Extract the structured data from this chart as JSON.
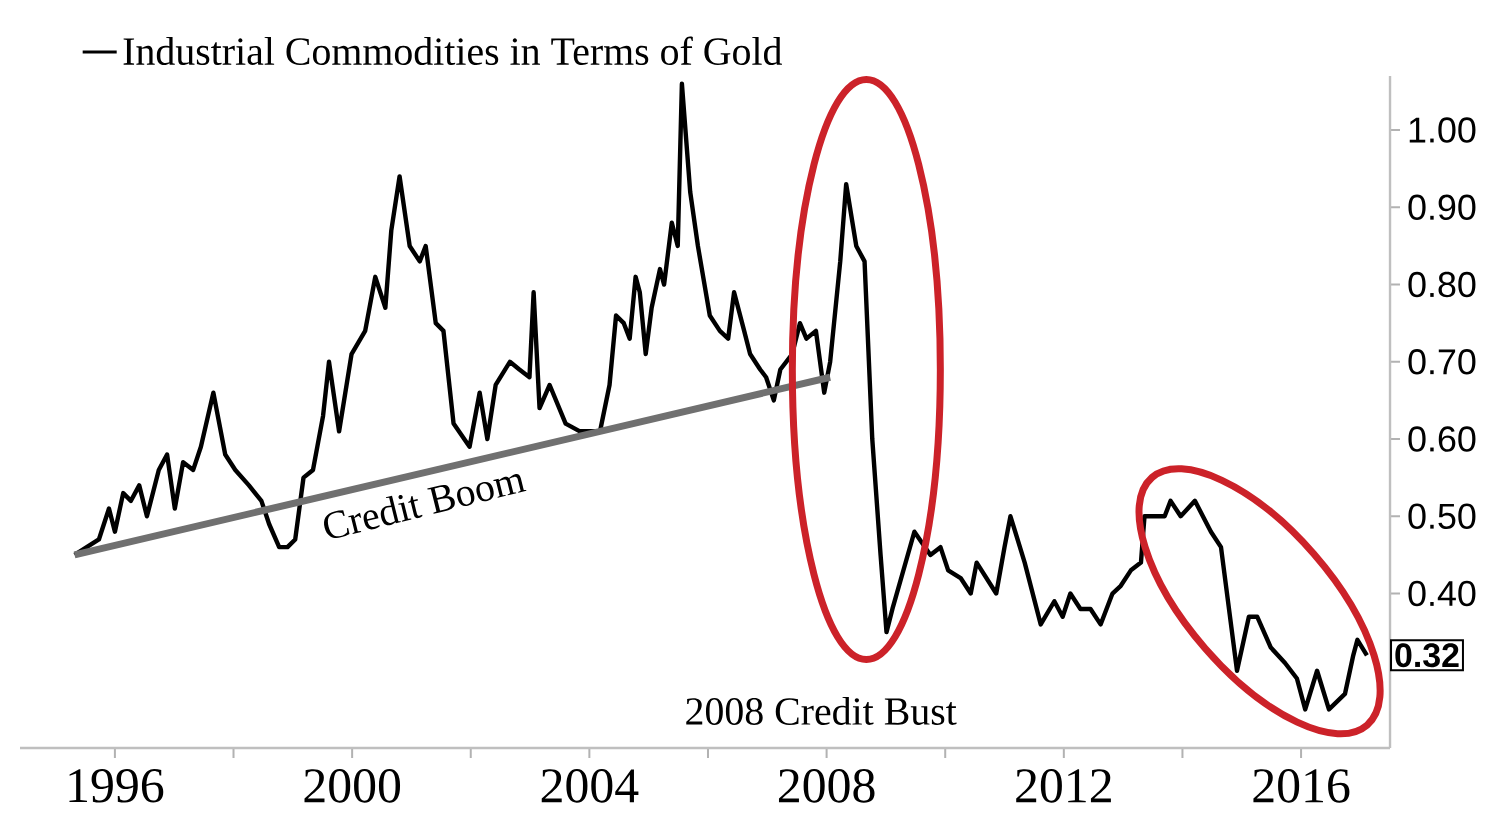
{
  "chart_data": {
    "type": "line",
    "x": [
      1995.32,
      1995.73,
      1995.9,
      1996.0,
      1996.14,
      1996.27,
      1996.41,
      1996.54,
      1996.74,
      1996.88,
      1997.01,
      1997.15,
      1997.32,
      1997.45,
      1997.66,
      1997.86,
      1998.03,
      1998.26,
      1998.47,
      1998.6,
      1998.77,
      1998.91,
      1999.04,
      1999.18,
      1999.34,
      1999.51,
      1999.61,
      1999.78,
      1999.99,
      2000.22,
      2000.39,
      2000.56,
      2000.66,
      2000.8,
      2000.97,
      2001.14,
      2001.24,
      2001.41,
      2001.54,
      2001.71,
      2001.98,
      2002.15,
      2002.28,
      2002.42,
      2002.66,
      2002.82,
      2002.99,
      2003.06,
      2003.16,
      2003.33,
      2003.6,
      2003.84,
      2004.18,
      2004.34,
      2004.45,
      2004.58,
      2004.68,
      2004.78,
      2004.85,
      2004.95,
      2005.05,
      2005.19,
      2005.26,
      2005.39,
      2005.49,
      2005.56,
      2005.7,
      2005.83,
      2006.03,
      2006.2,
      2006.34,
      2006.44,
      2006.61,
      2006.71,
      2006.88,
      2006.98,
      2007.11,
      2007.22,
      2007.42,
      2007.55,
      2007.66,
      2007.82,
      2007.96,
      2008.06,
      2008.23,
      2008.33,
      2008.5,
      2008.64,
      2008.77,
      2008.91,
      2009.01,
      2009.11,
      2009.48,
      2009.75,
      2009.92,
      2010.05,
      2010.26,
      2010.43,
      2010.53,
      2010.86,
      2011.0,
      2011.1,
      2011.34,
      2011.61,
      2011.84,
      2011.98,
      2012.11,
      2012.28,
      2012.45,
      2012.62,
      2012.82,
      2012.96,
      2013.13,
      2013.3,
      2013.36,
      2013.57,
      2013.7,
      2013.8,
      2013.97,
      2014.21,
      2014.48,
      2014.65,
      2014.92,
      2015.12,
      2015.26,
      2015.49,
      2015.73,
      2015.93,
      2016.07,
      2016.27,
      2016.47,
      2016.74,
      2016.88,
      2016.95,
      2017.11
    ],
    "series": [
      {
        "name": "Industrial Commodities in Terms of Gold",
        "color": "#000000",
        "values": [
          0.45,
          0.47,
          0.51,
          0.48,
          0.53,
          0.52,
          0.54,
          0.5,
          0.56,
          0.58,
          0.51,
          0.57,
          0.56,
          0.59,
          0.66,
          0.58,
          0.56,
          0.54,
          0.52,
          0.49,
          0.46,
          0.46,
          0.47,
          0.55,
          0.56,
          0.63,
          0.7,
          0.61,
          0.71,
          0.74,
          0.81,
          0.77,
          0.87,
          0.94,
          0.85,
          0.83,
          0.85,
          0.75,
          0.74,
          0.62,
          0.59,
          0.66,
          0.6,
          0.67,
          0.7,
          0.69,
          0.68,
          0.79,
          0.64,
          0.67,
          0.62,
          0.61,
          0.61,
          0.67,
          0.76,
          0.75,
          0.73,
          0.81,
          0.79,
          0.71,
          0.77,
          0.82,
          0.8,
          0.88,
          0.85,
          1.06,
          0.92,
          0.85,
          0.76,
          0.74,
          0.73,
          0.79,
          0.74,
          0.71,
          0.69,
          0.68,
          0.65,
          0.69,
          0.71,
          0.75,
          0.73,
          0.74,
          0.66,
          0.7,
          0.83,
          0.93,
          0.85,
          0.83,
          0.6,
          0.45,
          0.35,
          0.38,
          0.48,
          0.45,
          0.46,
          0.43,
          0.42,
          0.4,
          0.44,
          0.4,
          0.46,
          0.5,
          0.44,
          0.36,
          0.39,
          0.37,
          0.4,
          0.38,
          0.38,
          0.36,
          0.4,
          0.41,
          0.43,
          0.44,
          0.5,
          0.5,
          0.5,
          0.52,
          0.5,
          0.52,
          0.48,
          0.46,
          0.3,
          0.37,
          0.37,
          0.33,
          0.31,
          0.29,
          0.25,
          0.3,
          0.25,
          0.27,
          0.32,
          0.34,
          0.32
        ]
      },
      {
        "color": "#707070",
        "x": [
          1995.32,
          2008.06
        ],
        "values": [
          0.45,
          0.68
        ]
      }
    ],
    "xlim": [
      1994.4,
      2017.5
    ],
    "ylim": [
      0.2,
      1.07
    ],
    "xticks": [
      1996,
      {
        "value": 1998,
        "label": null
      },
      2000,
      {
        "value": 2002,
        "label": null
      },
      2004,
      {
        "value": 2006,
        "label": null
      },
      2008,
      {
        "value": 2010,
        "label": null
      },
      2012,
      {
        "value": 2014,
        "label": null
      },
      2016
    ],
    "yticks": [
      {
        "value": 0.4,
        "label": "0.40"
      },
      {
        "value": 0.5,
        "label": "0.50"
      },
      {
        "value": 0.6,
        "label": "0.60"
      },
      {
        "value": 0.7,
        "label": "0.70"
      },
      {
        "value": 0.8,
        "label": "0.80"
      },
      {
        "value": 0.9,
        "label": "0.90"
      },
      {
        "value": 1.0,
        "label": "1.00"
      }
    ],
    "legend": "top left",
    "marker": "none",
    "annotations": [
      "Credit Boom",
      "2008 Credit Bust",
      {
        "text": "0.32",
        "y": 0.32
      }
    ]
  }
}
